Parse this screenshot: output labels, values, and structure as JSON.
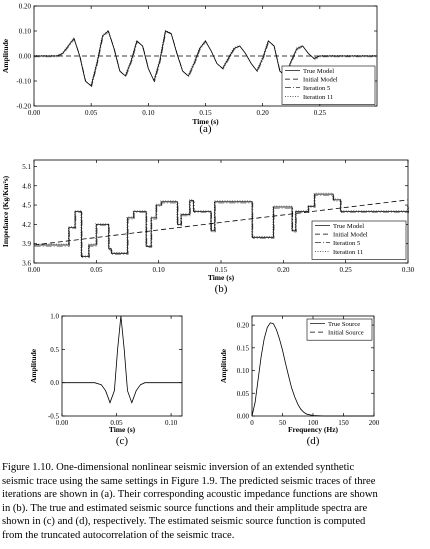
{
  "chart_data": [
    {
      "id": "a",
      "type": "line",
      "panel_label": "(a)",
      "xlabel": "Time (s)",
      "ylabel": "Amplitude",
      "xlim": [
        0,
        0.3
      ],
      "ylim": [
        -0.2,
        0.2
      ],
      "xticks": [
        "0.00",
        "0.05",
        "0.10",
        "0.15",
        "0.20",
        "0.25"
      ],
      "yticks": [
        "-0.20",
        "-0.10",
        "0.00",
        "0.10",
        "0.20"
      ],
      "legend_position": "bottom-right",
      "legend": [
        "True Model",
        "Initial Model",
        "Iteration 5",
        "Iteration 11"
      ],
      "series": [
        {
          "name": "True Model",
          "style": "solid",
          "x": [
            0.0,
            0.02,
            0.025,
            0.03,
            0.035,
            0.04,
            0.045,
            0.05,
            0.055,
            0.06,
            0.065,
            0.07,
            0.075,
            0.08,
            0.085,
            0.09,
            0.095,
            0.1,
            0.105,
            0.11,
            0.115,
            0.12,
            0.125,
            0.13,
            0.135,
            0.14,
            0.145,
            0.15,
            0.155,
            0.16,
            0.165,
            0.17,
            0.175,
            0.18,
            0.185,
            0.19,
            0.195,
            0.2,
            0.205,
            0.21,
            0.215,
            0.22,
            0.225,
            0.23,
            0.235,
            0.24,
            0.245,
            0.25,
            0.26,
            0.3
          ],
          "y": [
            0.0,
            0.0,
            0.01,
            0.04,
            0.07,
            0.0,
            -0.1,
            -0.12,
            -0.03,
            0.08,
            0.1,
            0.03,
            -0.06,
            -0.08,
            -0.02,
            0.06,
            0.04,
            -0.05,
            -0.1,
            -0.02,
            0.1,
            0.09,
            0.01,
            -0.06,
            -0.08,
            -0.03,
            0.03,
            0.06,
            0.02,
            -0.03,
            -0.05,
            -0.01,
            0.03,
            0.04,
            0.01,
            -0.03,
            -0.06,
            -0.01,
            0.06,
            0.04,
            -0.06,
            -0.08,
            -0.02,
            0.03,
            0.04,
            0.01,
            -0.01,
            0.0,
            0.0,
            0.0
          ]
        },
        {
          "name": "Initial Model",
          "style": "dashed",
          "x": [
            0.0,
            0.3
          ],
          "y": [
            0.0,
            0.0
          ]
        }
      ]
    },
    {
      "id": "b",
      "type": "line",
      "panel_label": "(b)",
      "xlabel": "Time (s)",
      "ylabel": "Impedance (Kg/Km²s)",
      "xlim": [
        0,
        0.3
      ],
      "ylim": [
        3.6,
        5.2
      ],
      "xticks": [
        "0.00",
        "0.05",
        "0.10",
        "0.15",
        "0.20",
        "0.25",
        "0.30"
      ],
      "yticks": [
        "3.6",
        "3.9",
        "4.2",
        "4.5",
        "4.8",
        "5.1"
      ],
      "legend_position": "bottom-right",
      "legend": [
        "True Model",
        "Initial Model",
        "Iteration 5",
        "Iteration 11"
      ],
      "series": [
        {
          "name": "True Model",
          "style": "step",
          "x": [
            0.0,
            0.028,
            0.033,
            0.038,
            0.044,
            0.05,
            0.06,
            0.062,
            0.075,
            0.08,
            0.09,
            0.094,
            0.098,
            0.102,
            0.115,
            0.118,
            0.125,
            0.128,
            0.142,
            0.145,
            0.155,
            0.16,
            0.175,
            0.192,
            0.207,
            0.21,
            0.22,
            0.225,
            0.24,
            0.246,
            0.3
          ],
          "y": [
            3.88,
            4.15,
            4.4,
            3.7,
            3.88,
            4.2,
            3.82,
            3.75,
            4.3,
            4.4,
            3.86,
            4.3,
            4.5,
            4.55,
            4.2,
            4.35,
            4.57,
            4.4,
            4.1,
            4.55,
            4.55,
            4.55,
            4.0,
            4.47,
            4.1,
            4.4,
            4.48,
            4.67,
            4.58,
            4.4,
            4.48
          ]
        },
        {
          "name": "Initial Model",
          "style": "dashed",
          "x": [
            0.0,
            0.3
          ],
          "y": [
            3.88,
            4.58
          ]
        }
      ]
    },
    {
      "id": "c",
      "type": "line",
      "panel_label": "(c)",
      "xlabel": "Time (s)",
      "ylabel": "Amplitude",
      "xlim": [
        0,
        0.11
      ],
      "ylim": [
        -0.5,
        1.0
      ],
      "xticks": [
        "0.00",
        "0.05",
        "0.10"
      ],
      "yticks": [
        "-0.5",
        "0.0",
        "0.5",
        "1.0"
      ],
      "series": [
        {
          "name": "True Source",
          "style": "solid",
          "x": [
            0.0,
            0.03,
            0.036,
            0.04,
            0.044,
            0.048,
            0.051,
            0.054,
            0.057,
            0.06,
            0.064,
            0.068,
            0.072,
            0.076,
            0.08,
            0.11
          ],
          "y": [
            0.0,
            0.0,
            -0.03,
            -0.12,
            -0.3,
            -0.12,
            0.5,
            1.0,
            0.5,
            -0.12,
            -0.3,
            -0.12,
            -0.03,
            0.0,
            0.0,
            0.0
          ]
        }
      ]
    },
    {
      "id": "d",
      "type": "line",
      "panel_label": "(d)",
      "xlabel": "Frequency (Hz)",
      "ylabel": "Amplitude",
      "xlim": [
        0,
        200
      ],
      "ylim": [
        0,
        0.22
      ],
      "xticks": [
        "0",
        "50",
        "100",
        "150",
        "200"
      ],
      "yticks": [
        "0.00",
        "0.05",
        "0.10",
        "0.15",
        "0.20"
      ],
      "legend_position": "top-right",
      "legend": [
        "True Source",
        "Initial Source"
      ],
      "series": [
        {
          "name": "True Source",
          "style": "solid",
          "x": [
            0,
            5,
            10,
            15,
            20,
            25,
            30,
            35,
            40,
            45,
            50,
            55,
            60,
            65,
            70,
            75,
            80,
            85,
            90,
            100,
            120,
            200
          ],
          "y": [
            0.0,
            0.03,
            0.08,
            0.13,
            0.17,
            0.195,
            0.205,
            0.203,
            0.19,
            0.17,
            0.145,
            0.115,
            0.088,
            0.062,
            0.042,
            0.026,
            0.015,
            0.008,
            0.004,
            0.001,
            0.0,
            0.0
          ]
        }
      ]
    }
  ],
  "caption": {
    "lines": [
      "Figure 1.10.  One-dimensional nonlinear seismic inversion of an extended synthetic",
      "seismic trace using the same settings in Figure 1.9.  The predicted seismic traces of three",
      "iterations are shown in (a).  Their corresponding acoustic impedance functions are shown",
      "in (b).  The true and estimated seismic source functions and their amplitude spectra are",
      "shown in (c) and (d), respectively.  The estimated seismic source function is computed",
      "from the truncated autocorrelation of the seismic trace."
    ]
  }
}
